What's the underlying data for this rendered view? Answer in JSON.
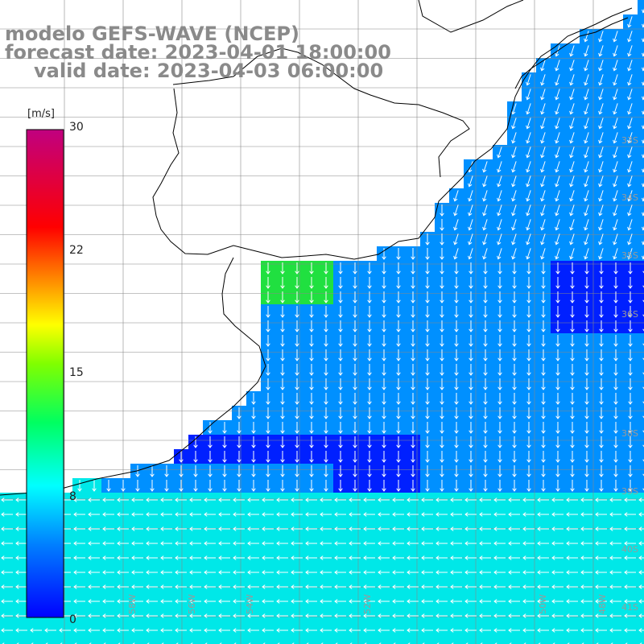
{
  "titles": {
    "line1": "modelo GEFS-WAVE (NCEP)",
    "line2": "forecast date: 2023-04-01 18:00:00",
    "line3": "valid date: 2023-04-03 06:00:00"
  },
  "colorbar": {
    "unit": "[m/s]",
    "min": 0,
    "max": 30,
    "ticks": [
      "30",
      "22",
      "15",
      "8",
      "0"
    ],
    "colors": [
      "#0000ff",
      "#0080ff",
      "#00ffff",
      "#00ff00",
      "#ffff00",
      "#ff8000",
      "#ff0000",
      "#c00080"
    ]
  },
  "grid": {
    "lat_labels": [
      "33S",
      "34S",
      "35S",
      "36S",
      "38S",
      "39S",
      "40S",
      "41S"
    ],
    "lon_labels": [
      "58W",
      "56W",
      "54W",
      "52W",
      "50W",
      "48W"
    ]
  },
  "field": {
    "description_colors": {
      "land": "#ffffff",
      "calm": "#0020ff",
      "moderate": "#0090ff",
      "strong": "#00e8e8",
      "peak": "#20e040"
    }
  }
}
